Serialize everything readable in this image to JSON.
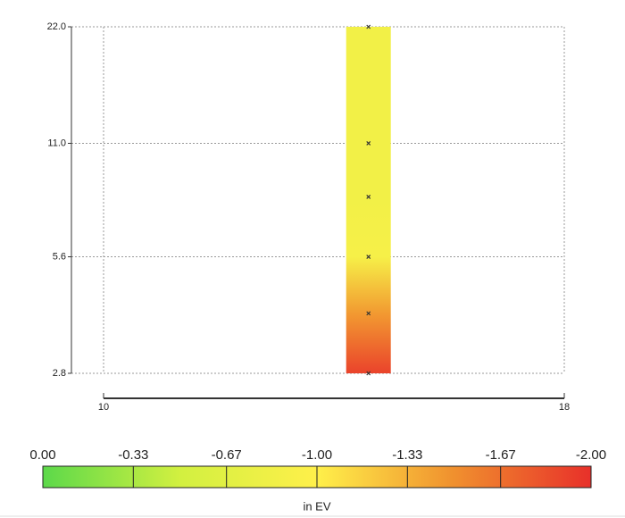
{
  "chart_data": {
    "type": "scatter",
    "x": [
      14.6,
      14.6,
      14.6,
      14.6,
      14.6,
      14.6
    ],
    "y": [
      22,
      11,
      8,
      5.6,
      4,
      2.8
    ],
    "values": [
      -0.85,
      -0.85,
      -0.85,
      -0.9,
      -1.45,
      -1.9
    ],
    "xlim": [
      10,
      18
    ],
    "xticks": [
      10,
      18
    ],
    "ylim": [
      2.8,
      22
    ],
    "log_y": true,
    "yticks": [
      2.8,
      5.6,
      {
        "value": 11,
        "label": "11.0"
      },
      {
        "value": 22,
        "label": "22.0"
      }
    ],
    "grid": true,
    "marker_color": "#333333",
    "colorbar": {
      "lim": [
        0,
        -2
      ],
      "ticks": [
        {
          "value": 0,
          "label": "0.00"
        },
        -0.33,
        -0.67,
        {
          "value": -1,
          "label": "-1.00"
        },
        -1.33,
        -1.67,
        {
          "value": -2,
          "label": "-2.00"
        }
      ],
      "colors": [
        "#5cd94a",
        "#d2f040",
        "#fff04a",
        "#f0902e",
        "#e8302a"
      ],
      "label": "in EV"
    }
  }
}
